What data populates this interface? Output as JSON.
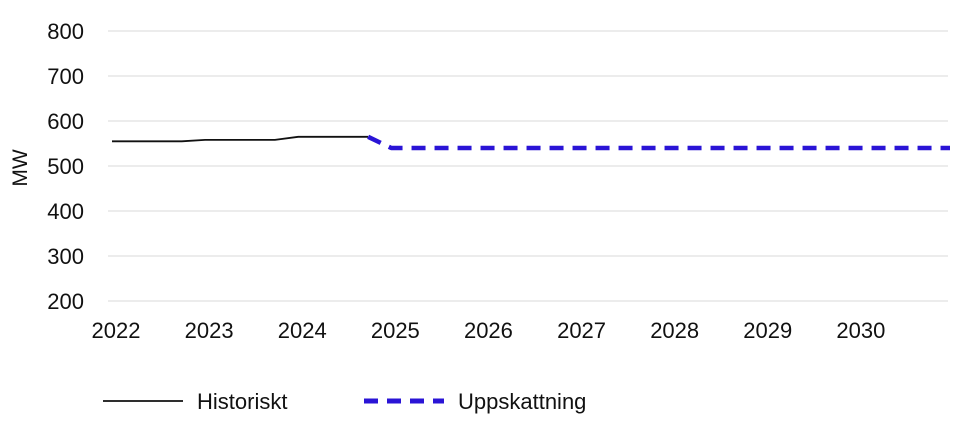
{
  "chart_data": {
    "type": "line",
    "ylabel": "MW",
    "xlabel": "",
    "ylim": [
      200,
      800
    ],
    "xlim": [
      2022,
      2031
    ],
    "y_ticks": [
      "200",
      "300",
      "400",
      "500",
      "600",
      "700",
      "800"
    ],
    "x_ticks": [
      "2022",
      "2023",
      "2024",
      "2025",
      "2026",
      "2027",
      "2028",
      "2029",
      "2030"
    ],
    "grid": "horizontal",
    "legend_position": "bottom",
    "colors": {
      "historical": "#111111",
      "forecast": "#2a14d6",
      "grid": "#d9d9d9"
    },
    "series": [
      {
        "name": "Historiskt",
        "style": "solid",
        "points": [
          [
            2022.0,
            555
          ],
          [
            2022.25,
            555
          ],
          [
            2022.5,
            555
          ],
          [
            2022.75,
            555
          ],
          [
            2023.0,
            558
          ],
          [
            2023.25,
            558
          ],
          [
            2023.5,
            558
          ],
          [
            2023.75,
            558
          ],
          [
            2024.0,
            565
          ],
          [
            2024.25,
            565
          ],
          [
            2024.5,
            565
          ],
          [
            2024.75,
            565
          ]
        ]
      },
      {
        "name": "Uppskattning",
        "style": "dashed",
        "points": [
          [
            2024.75,
            565
          ],
          [
            2025.0,
            540
          ],
          [
            2025.5,
            540
          ],
          [
            2026.0,
            540
          ],
          [
            2027.0,
            540
          ],
          [
            2028.0,
            540
          ],
          [
            2029.0,
            540
          ],
          [
            2030.0,
            540
          ],
          [
            2031.0,
            540
          ]
        ]
      }
    ]
  }
}
